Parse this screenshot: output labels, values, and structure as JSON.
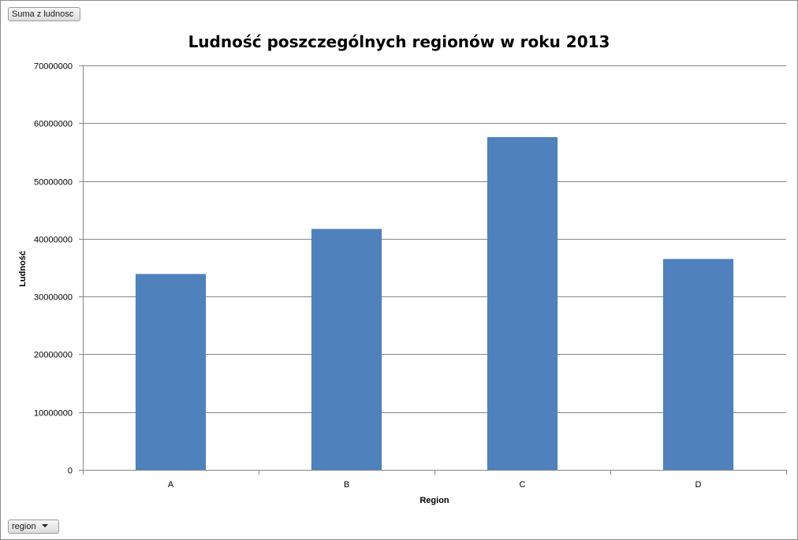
{
  "pivot": {
    "value_field_label": "Suma z ludnosc",
    "axis_field_label": "region"
  },
  "icons": {
    "axis_field_dropdown": "chevron-down-icon"
  },
  "chart_data": {
    "type": "bar",
    "title": "Ludność poszczególnych regionów w roku 2013",
    "xlabel": "Region",
    "ylabel": "Ludność",
    "categories": [
      "A",
      "B",
      "C",
      "D"
    ],
    "values": [
      33900000,
      41700000,
      57600000,
      36500000
    ],
    "ylim": [
      0,
      70000000
    ],
    "yticks": [
      "0",
      "10000000",
      "20000000",
      "30000000",
      "40000000",
      "50000000",
      "60000000",
      "70000000"
    ],
    "grid": true,
    "legend": "none",
    "bar_color": "#4f81bd"
  }
}
